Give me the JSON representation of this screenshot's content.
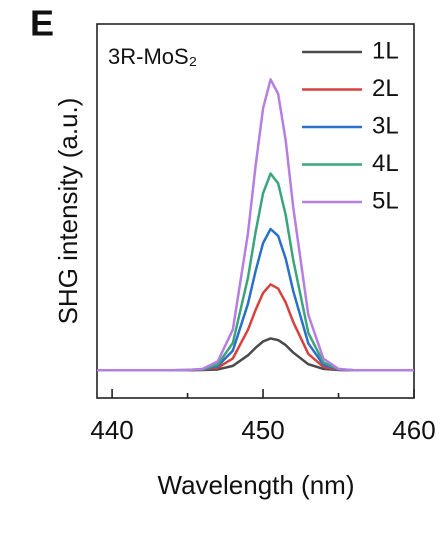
{
  "chart_data": {
    "type": "line",
    "panel_label": "E",
    "annotation": "3R-MoS₂",
    "xlabel": "Wavelength (nm)",
    "ylabel": "SHG intensity (a.u.)",
    "x": [
      439,
      441,
      443,
      444,
      445,
      446,
      447,
      448,
      449,
      449.5,
      450,
      450.5,
      451,
      451.5,
      452,
      453,
      454,
      455,
      456,
      457,
      459,
      460
    ],
    "series": [
      {
        "name": "1L",
        "color": "#4a4a4a",
        "values": [
          0,
          0,
          0,
          0,
          0,
          0.001,
          0.003,
          0.016,
          0.054,
          0.081,
          0.104,
          0.115,
          0.109,
          0.091,
          0.064,
          0.022,
          0.005,
          0.001,
          0,
          0,
          0,
          0
        ]
      },
      {
        "name": "2L",
        "color": "#d9413f",
        "values": [
          0,
          0,
          0,
          0,
          0,
          0.002,
          0.009,
          0.043,
          0.146,
          0.217,
          0.279,
          0.31,
          0.295,
          0.245,
          0.174,
          0.059,
          0.012,
          0.002,
          0,
          0,
          0,
          0
        ]
      },
      {
        "name": "3L",
        "color": "#2a6fc9",
        "values": [
          0,
          0,
          0,
          0,
          0.001,
          0.003,
          0.015,
          0.071,
          0.24,
          0.357,
          0.459,
          0.51,
          0.485,
          0.403,
          0.286,
          0.097,
          0.02,
          0.003,
          0,
          0,
          0,
          0
        ]
      },
      {
        "name": "4L",
        "color": "#3aa57a",
        "values": [
          0,
          0,
          0,
          0,
          0.001,
          0.004,
          0.021,
          0.099,
          0.334,
          0.497,
          0.639,
          0.71,
          0.675,
          0.561,
          0.398,
          0.135,
          0.028,
          0.004,
          0,
          0,
          0,
          0
        ]
      },
      {
        "name": "5L",
        "color": "#b57ee0",
        "values": [
          0,
          0,
          0,
          0,
          0.001,
          0.005,
          0.032,
          0.147,
          0.494,
          0.735,
          0.945,
          1.05,
          0.998,
          0.83,
          0.588,
          0.2,
          0.042,
          0.005,
          0,
          0,
          0,
          0
        ]
      }
    ],
    "xlim": [
      439,
      460
    ],
    "xticks": [
      440,
      450,
      460
    ],
    "xminorticks": [
      445,
      455
    ],
    "ylim": [
      -0.1,
      1.25
    ],
    "legend": "upper right"
  }
}
